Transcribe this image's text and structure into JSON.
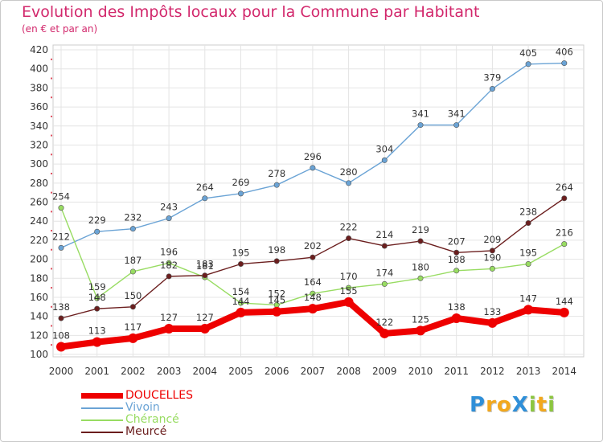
{
  "title": "Evolution des Impôts locaux pour la Commune par Habitant",
  "subtitle": "(en € et par an)",
  "colors": {
    "title": "#d2286c",
    "DOUCELLES": "#ee0000",
    "Vivoin": "#6aa3d5",
    "Chérancé": "#98dc62",
    "Meurcé": "#6b1e1e"
  },
  "chart_data": {
    "type": "line",
    "x": [
      "2000",
      "2001",
      "2002",
      "2003",
      "2004",
      "2005",
      "2006",
      "2007",
      "2008",
      "2009",
      "2010",
      "2011",
      "2012",
      "2013",
      "2014"
    ],
    "ylim": [
      100,
      420
    ],
    "yticks": [
      100,
      120,
      140,
      160,
      180,
      200,
      220,
      240,
      260,
      280,
      300,
      320,
      340,
      360,
      380,
      400,
      420
    ],
    "grid": true,
    "legend_position": "bottom-left",
    "series": [
      {
        "name": "DOUCELLES",
        "color": "#ee0000",
        "values": [
          108,
          113,
          117,
          127,
          127,
          144,
          145,
          148,
          155,
          122,
          125,
          138,
          133,
          147,
          144
        ],
        "labels": [
          "108",
          "113",
          "117",
          "127",
          "127",
          "144",
          "145",
          "148",
          "155",
          "122",
          "125",
          "138",
          "133",
          "147",
          "144"
        ]
      },
      {
        "name": "Vivoin",
        "color": "#6aa3d5",
        "values": [
          212,
          229,
          232,
          243,
          264,
          269,
          278,
          296,
          280,
          304,
          341,
          341,
          379,
          405,
          406
        ],
        "labels": [
          "212",
          "229",
          "232",
          "243",
          "264",
          "269",
          "278",
          "296",
          "280",
          "304",
          "341",
          "341",
          "379",
          "405",
          "406"
        ]
      },
      {
        "name": "Chérancé",
        "color": "#98dc62",
        "values": [
          254,
          159,
          187,
          196,
          181,
          154,
          152,
          164,
          170,
          174,
          180,
          188,
          190,
          195,
          216
        ],
        "labels": [
          "254",
          "159",
          "187",
          "196",
          "181",
          "154",
          "152",
          "164",
          "170",
          "174",
          "180",
          "188",
          "190",
          "195",
          "216"
        ]
      },
      {
        "name": "Meurcé",
        "color": "#6b1e1e",
        "values": [
          138,
          148,
          150,
          182,
          183,
          195,
          198,
          202,
          222,
          214,
          219,
          207,
          209,
          238,
          264
        ],
        "labels": [
          "138",
          "148",
          "150",
          "182",
          "183",
          "195",
          "198",
          "202",
          "222",
          "214",
          "219",
          "207",
          "209",
          "238",
          "264"
        ]
      }
    ]
  },
  "legend": {
    "items": [
      {
        "name": "DOUCELLES",
        "color": "#ee0000"
      },
      {
        "name": "Vivoin",
        "color": "#6aa3d5"
      },
      {
        "name": "Chérancé",
        "color": "#98dc62"
      },
      {
        "name": "Meurcé",
        "color": "#6b1e1e"
      }
    ]
  },
  "logo": {
    "text": "ProXiti",
    "letters": [
      {
        "ch": "P",
        "color": "#2f8fd8"
      },
      {
        "ch": "r",
        "color": "#f2a81d"
      },
      {
        "ch": "o",
        "color": "#f2a81d"
      },
      {
        "ch": "X",
        "color": "#2f8fd8"
      },
      {
        "ch": "i",
        "color": "#8cc63f"
      },
      {
        "ch": "t",
        "color": "#f2a81d"
      },
      {
        "ch": "i",
        "color": "#8cc63f"
      }
    ]
  }
}
